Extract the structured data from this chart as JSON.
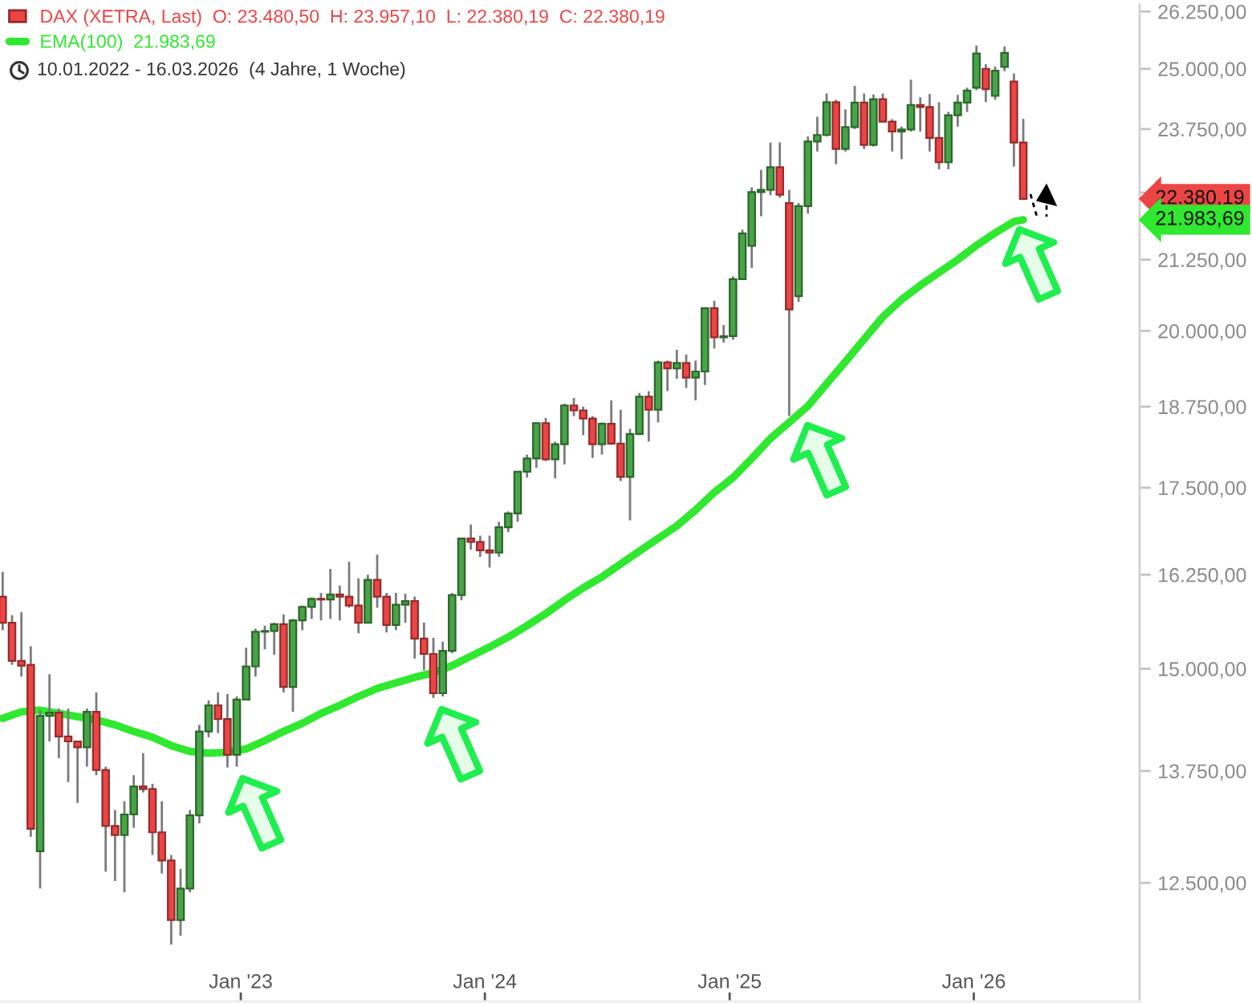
{
  "chart_data": {
    "type": "candlestick",
    "subtitle": "10.01.2022 - 16.03.2026  (4 Jahre, 1 Woche)",
    "series": [
      {
        "name": "DAX (XETRA, Last)  O: 23.480,50  H: 23.957,10  L: 22.380,19  C: 22.380,19",
        "x": [
          "2022-01-10",
          "2022-01-24",
          "2022-02-07",
          "2022-02-21",
          "2022-03-07",
          "2022-03-21",
          "2022-04-04",
          "2022-04-18",
          "2022-05-02",
          "2022-05-16",
          "2022-05-30",
          "2022-06-13",
          "2022-06-27",
          "2022-07-11",
          "2022-07-25",
          "2022-08-08",
          "2022-08-22",
          "2022-09-05",
          "2022-09-19",
          "2022-10-03",
          "2022-10-17",
          "2022-10-31",
          "2022-11-14",
          "2022-11-28",
          "2022-12-12",
          "2022-12-26",
          "2023-01-09",
          "2023-01-23",
          "2023-02-06",
          "2023-02-20",
          "2023-03-06",
          "2023-03-20",
          "2023-04-03",
          "2023-04-17",
          "2023-05-01",
          "2023-05-15",
          "2023-05-29",
          "2023-06-12",
          "2023-06-26",
          "2023-07-10",
          "2023-07-24",
          "2023-08-07",
          "2023-08-21",
          "2023-09-04",
          "2023-09-18",
          "2023-10-02",
          "2023-10-16",
          "2023-10-30",
          "2023-11-13",
          "2023-11-27",
          "2023-12-11",
          "2023-12-25",
          "2024-01-08",
          "2024-01-22",
          "2024-02-05",
          "2024-02-19",
          "2024-03-04",
          "2024-03-18",
          "2024-04-01",
          "2024-04-15",
          "2024-04-29",
          "2024-05-13",
          "2024-05-27",
          "2024-06-10",
          "2024-06-24",
          "2024-07-08",
          "2024-07-22",
          "2024-08-05",
          "2024-08-19",
          "2024-09-02",
          "2024-09-16",
          "2024-09-30",
          "2024-10-14",
          "2024-10-28",
          "2024-11-11",
          "2024-11-25",
          "2024-12-09",
          "2024-12-23",
          "2025-01-06",
          "2025-01-20",
          "2025-02-03",
          "2025-02-17",
          "2025-03-03",
          "2025-03-17",
          "2025-03-31",
          "2025-04-14",
          "2025-04-28",
          "2025-05-12",
          "2025-05-26",
          "2025-06-09",
          "2025-06-23",
          "2025-07-07",
          "2025-07-21",
          "2025-08-04",
          "2025-08-18",
          "2025-09-01",
          "2025-09-15",
          "2025-09-29",
          "2025-10-13",
          "2025-10-27",
          "2025-11-10",
          "2025-11-24",
          "2025-12-08",
          "2025-12-22",
          "2026-01-05",
          "2026-01-19",
          "2026-02-02",
          "2026-02-16",
          "2026-03-02",
          "2026-03-16"
        ],
        "ohlc": [
          [
            15950,
            16290,
            15500,
            15600
          ],
          [
            15600,
            15700,
            15050,
            15100
          ],
          [
            15100,
            15740,
            14900,
            15040
          ],
          [
            15050,
            15290,
            13000,
            13090
          ],
          [
            12840,
            14480,
            12440,
            14410
          ],
          [
            14410,
            14930,
            14100,
            14450
          ],
          [
            14450,
            14500,
            13900,
            14160
          ],
          [
            14160,
            14500,
            13620,
            14100
          ],
          [
            14100,
            14100,
            13380,
            14030
          ],
          [
            14030,
            14500,
            13800,
            14460
          ],
          [
            14460,
            14700,
            13700,
            13760
          ],
          [
            13760,
            13800,
            12620,
            13120
          ],
          [
            13120,
            13300,
            12520,
            13020
          ],
          [
            13020,
            13400,
            12400,
            13250
          ],
          [
            13250,
            13700,
            13100,
            13570
          ],
          [
            13570,
            13960,
            13500,
            13540
          ],
          [
            13540,
            13600,
            12800,
            13050
          ],
          [
            13050,
            13400,
            12600,
            12740
          ],
          [
            12740,
            12800,
            11860,
            12110
          ],
          [
            12110,
            12650,
            11950,
            12440
          ],
          [
            12440,
            13300,
            12400,
            13240
          ],
          [
            13240,
            14300,
            13150,
            14220
          ],
          [
            14220,
            14600,
            14150,
            14540
          ],
          [
            14540,
            14700,
            14200,
            14370
          ],
          [
            14370,
            14680,
            13790,
            13940
          ],
          [
            13940,
            14650,
            13800,
            14610
          ],
          [
            14610,
            15270,
            14600,
            15030
          ],
          [
            15030,
            15520,
            14900,
            15480
          ],
          [
            15480,
            15560,
            15250,
            15490
          ],
          [
            15490,
            15600,
            15180,
            15580
          ],
          [
            15580,
            15710,
            14700,
            14770
          ],
          [
            14770,
            15650,
            14460,
            15630
          ],
          [
            15630,
            15830,
            15500,
            15810
          ],
          [
            15810,
            15940,
            15650,
            15920
          ],
          [
            15920,
            16000,
            15630,
            15910
          ],
          [
            15910,
            16330,
            15650,
            15980
          ],
          [
            15980,
            16100,
            15630,
            15950
          ],
          [
            15950,
            16430,
            15800,
            15830
          ],
          [
            15830,
            16200,
            15460,
            15600
          ],
          [
            15600,
            16250,
            15590,
            16180
          ],
          [
            16180,
            16530,
            15800,
            15950
          ],
          [
            15950,
            16000,
            15470,
            15570
          ],
          [
            15570,
            16000,
            15500,
            15840
          ],
          [
            15840,
            15990,
            15600,
            15890
          ],
          [
            15890,
            15950,
            15130,
            15390
          ],
          [
            15390,
            15600,
            14980,
            15190
          ],
          [
            15190,
            15400,
            14630,
            14690
          ],
          [
            14690,
            15350,
            14650,
            15230
          ],
          [
            15230,
            16000,
            15200,
            15970
          ],
          [
            15970,
            16760,
            15900,
            16760
          ],
          [
            16760,
            16960,
            16600,
            16710
          ],
          [
            16710,
            16800,
            16500,
            16590
          ],
          [
            16590,
            16800,
            16350,
            16560
          ],
          [
            16560,
            17000,
            16500,
            16920
          ],
          [
            16920,
            17150,
            16850,
            17120
          ],
          [
            17120,
            17750,
            17000,
            17740
          ],
          [
            17740,
            18000,
            17650,
            17940
          ],
          [
            17940,
            18500,
            17800,
            18490
          ],
          [
            18490,
            18570,
            17900,
            17930
          ],
          [
            17930,
            18200,
            17640,
            18160
          ],
          [
            18160,
            18800,
            17850,
            18770
          ],
          [
            18770,
            18890,
            18600,
            18690
          ],
          [
            18690,
            18750,
            18300,
            18560
          ],
          [
            18560,
            18600,
            17950,
            18160
          ],
          [
            18160,
            18500,
            18000,
            18480
          ],
          [
            18480,
            18850,
            18150,
            18170
          ],
          [
            18170,
            18700,
            17600,
            17660
          ],
          [
            17660,
            18400,
            17020,
            18320
          ],
          [
            18320,
            18970,
            18300,
            18910
          ],
          [
            18910,
            19000,
            18200,
            18700
          ],
          [
            18700,
            19500,
            18500,
            19470
          ],
          [
            19470,
            19500,
            19000,
            19370
          ],
          [
            19370,
            19680,
            19200,
            19460
          ],
          [
            19460,
            19600,
            19050,
            19220
          ],
          [
            19220,
            19500,
            18850,
            19320
          ],
          [
            19320,
            20400,
            19100,
            20390
          ],
          [
            20390,
            20520,
            19700,
            19890
          ],
          [
            19890,
            20100,
            19800,
            19910
          ],
          [
            19910,
            20950,
            19850,
            20900
          ],
          [
            20900,
            21800,
            20900,
            21730
          ],
          [
            21500,
            22600,
            21100,
            22510
          ],
          [
            22510,
            22940,
            22050,
            22550
          ],
          [
            22550,
            23480,
            22450,
            22990
          ],
          [
            22990,
            23480,
            22400,
            22460
          ],
          [
            22300,
            22550,
            18600,
            20370
          ],
          [
            20600,
            22300,
            20500,
            22240
          ],
          [
            22240,
            23600,
            22100,
            23500
          ],
          [
            23500,
            24000,
            23300,
            23630
          ],
          [
            23630,
            24480,
            23600,
            24300
          ],
          [
            24300,
            24350,
            23050,
            23350
          ],
          [
            23350,
            24150,
            23300,
            23790
          ],
          [
            23790,
            24640,
            23750,
            24290
          ],
          [
            24290,
            24480,
            23350,
            23430
          ],
          [
            23430,
            24460,
            23400,
            24360
          ],
          [
            24360,
            24480,
            23900,
            23900
          ],
          [
            23900,
            23950,
            23300,
            23700
          ],
          [
            23700,
            23800,
            23150,
            23740
          ],
          [
            23740,
            24770,
            23700,
            24240
          ],
          [
            24240,
            24400,
            23700,
            24200
          ],
          [
            24200,
            24470,
            23300,
            23570
          ],
          [
            23570,
            24300,
            22950,
            23090
          ],
          [
            23090,
            24100,
            22950,
            24030
          ],
          [
            24030,
            24450,
            23800,
            24290
          ],
          [
            24290,
            24600,
            24100,
            24540
          ],
          [
            24600,
            25500,
            24550,
            25330
          ],
          [
            25000,
            25100,
            24300,
            24570
          ],
          [
            24430,
            25050,
            24350,
            24960
          ],
          [
            25040,
            25480,
            24950,
            25340
          ],
          [
            24730,
            24900,
            23000,
            23480
          ],
          [
            23480.5,
            23957.1,
            22380.19,
            22380.19
          ]
        ],
        "colors": [
          "#ec4545",
          "#ec4545",
          "#ec4545",
          "#ec4545",
          "#47a447",
          "#47a447",
          "#ec4545",
          "#ec4545",
          "#ec4545",
          "#47a447",
          "#ec4545",
          "#ec4545",
          "#ec4545",
          "#47a447",
          "#47a447",
          "#ec4545",
          "#ec4545",
          "#ec4545",
          "#ec4545",
          "#47a447",
          "#47a447",
          "#47a447",
          "#47a447",
          "#ec4545",
          "#ec4545",
          "#47a447",
          "#47a447",
          "#47a447",
          "#47a447",
          "#47a447",
          "#ec4545",
          "#47a447",
          "#47a447",
          "#47a447",
          "#ec4545",
          "#47a447",
          "#ec4545",
          "#ec4545",
          "#ec4545",
          "#47a447",
          "#ec4545",
          "#ec4545",
          "#47a447",
          "#47a447",
          "#ec4545",
          "#ec4545",
          "#ec4545",
          "#47a447",
          "#47a447",
          "#47a447",
          "#ec4545",
          "#ec4545",
          "#ec4545",
          "#47a447",
          "#47a447",
          "#47a447",
          "#47a447",
          "#47a447",
          "#ec4545",
          "#47a447",
          "#47a447",
          "#ec4545",
          "#ec4545",
          "#ec4545",
          "#47a447",
          "#ec4545",
          "#ec4545",
          "#47a447",
          "#47a447",
          "#ec4545",
          "#47a447",
          "#ec4545",
          "#47a447",
          "#ec4545",
          "#47a447",
          "#47a447",
          "#ec4545",
          "#47a447",
          "#47a447",
          "#47a447",
          "#47a447",
          "#47a447",
          "#47a447",
          "#ec4545",
          "#ec4545",
          "#47a447",
          "#47a447",
          "#47a447",
          "#47a447",
          "#ec4545",
          "#47a447",
          "#47a447",
          "#ec4545",
          "#47a447",
          "#ec4545",
          "#ec4545",
          "#47a447",
          "#47a447",
          "#ec4545",
          "#ec4545",
          "#ec4545",
          "#47a447",
          "#47a447",
          "#47a447",
          "#47a447",
          "#ec4545",
          "#47a447",
          "#47a447",
          "#ec4545",
          "#ec4545"
        ]
      },
      {
        "type": "line",
        "name": "EMA(100)  21.983,69",
        "color": "#2fe82f",
        "x": [
          "2022-01-10",
          "2022-02-07",
          "2022-03-07",
          "2022-04-04",
          "2022-05-02",
          "2022-05-30",
          "2022-06-27",
          "2022-07-25",
          "2022-08-22",
          "2022-09-19",
          "2022-10-17",
          "2022-11-14",
          "2022-12-12",
          "2023-01-09",
          "2023-02-06",
          "2023-03-06",
          "2023-04-03",
          "2023-05-01",
          "2023-05-29",
          "2023-06-26",
          "2023-07-24",
          "2023-08-21",
          "2023-09-18",
          "2023-10-16",
          "2023-11-13",
          "2023-12-11",
          "2024-01-08",
          "2024-02-05",
          "2024-03-04",
          "2024-04-01",
          "2024-04-29",
          "2024-05-27",
          "2024-06-24",
          "2024-07-22",
          "2024-08-19",
          "2024-09-16",
          "2024-10-14",
          "2024-11-11",
          "2024-12-09",
          "2025-01-06",
          "2025-02-03",
          "2025-03-03",
          "2025-03-31",
          "2025-04-28",
          "2025-05-26",
          "2025-06-23",
          "2025-07-21",
          "2025-08-18",
          "2025-09-15",
          "2025-10-13",
          "2025-11-10",
          "2025-12-08",
          "2026-01-05",
          "2026-02-02",
          "2026-03-02",
          "2026-03-16"
        ],
        "values": [
          14380,
          14460,
          14480,
          14440,
          14400,
          14360,
          14300,
          14220,
          14150,
          14050,
          13980,
          13960,
          13970,
          14010,
          14110,
          14220,
          14320,
          14440,
          14540,
          14650,
          14750,
          14820,
          14890,
          14950,
          15040,
          15160,
          15280,
          15410,
          15560,
          15720,
          15900,
          16070,
          16220,
          16400,
          16580,
          16760,
          16940,
          17170,
          17430,
          17650,
          17940,
          18250,
          18500,
          18760,
          19120,
          19480,
          19860,
          20240,
          20540,
          20790,
          21020,
          21250,
          21510,
          21740,
          21950,
          21983.69
        ]
      }
    ],
    "log": "y",
    "xlim": [
      "2022-01-06",
      "2026-09-06"
    ],
    "xticks": [
      {
        "value": "2023-01-01",
        "label": "Jan '23"
      },
      {
        "value": "2024-01-01",
        "label": "Jan '24"
      },
      {
        "value": "2025-01-01",
        "label": "Jan '25"
      },
      {
        "value": "2026-01-01",
        "label": "Jan '26"
      }
    ],
    "ylim": [
      11300,
      26400
    ],
    "yticks": [
      {
        "value": 12500,
        "label": "12.500,00"
      },
      {
        "value": 13750,
        "label": "13.750,00"
      },
      {
        "value": 15000,
        "label": "15.000,00"
      },
      {
        "value": 16250,
        "label": "16.250,00"
      },
      {
        "value": 17500,
        "label": "17.500,00"
      },
      {
        "value": 18750,
        "label": "18.750,00"
      },
      {
        "value": 20000,
        "label": "20.000,00"
      },
      {
        "value": 21250,
        "label": "21.250,00"
      },
      {
        "value": 22500,
        "label": null
      },
      {
        "value": 23750,
        "label": "23.750,00"
      },
      {
        "value": 25000,
        "label": "25.000,00"
      },
      {
        "value": 26250,
        "label": "26.250,00"
      }
    ],
    "legend": "top left",
    "annotations": [
      "22.380,19",
      "21.983,69"
    ]
  }
}
